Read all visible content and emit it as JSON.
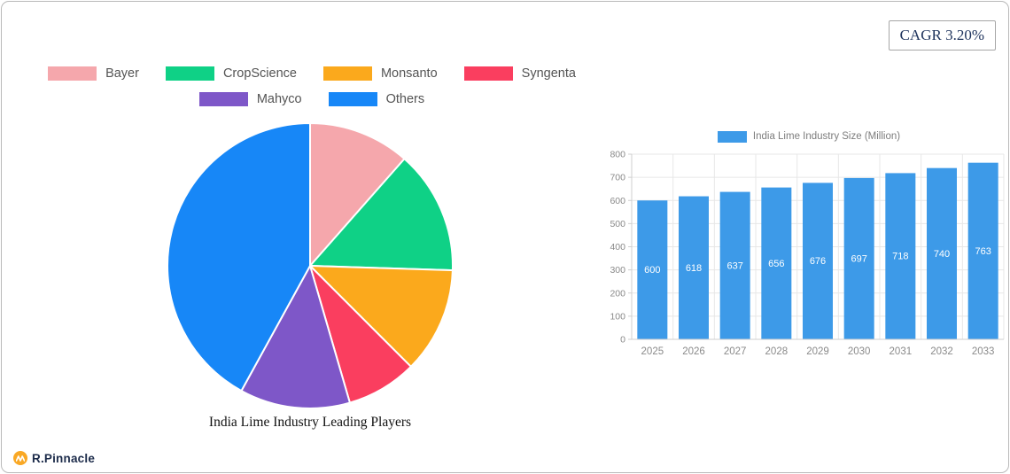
{
  "card": {
    "cagr_label": "CAGR 3.20%"
  },
  "brand": {
    "name": "R.Pinnacle",
    "icon_color": "#F9A825",
    "text_color": "#1c2b4a"
  },
  "chart_data": [
    {
      "type": "pie",
      "title": "India Lime Industry Leading Players",
      "legend_position": "top",
      "start_angle_deg": 0,
      "direction": "clockwise",
      "slices": [
        {
          "label": "Bayer",
          "value": 11.5,
          "color": "#F5A7AC"
        },
        {
          "label": "CropScience",
          "value": 14.0,
          "color": "#0FD186"
        },
        {
          "label": "Monsanto",
          "value": 12.0,
          "color": "#FBA91C"
        },
        {
          "label": "Syngenta",
          "value": 8.0,
          "color": "#FA3E5F"
        },
        {
          "label": "Mahyco",
          "value": 12.5,
          "color": "#7E57C8"
        },
        {
          "label": "Others",
          "value": 42.0,
          "color": "#1787F7"
        }
      ]
    },
    {
      "type": "bar",
      "legend": "India Lime Industry Size (Million)",
      "categories": [
        "2025",
        "2026",
        "2027",
        "2028",
        "2029",
        "2030",
        "2031",
        "2032",
        "2033"
      ],
      "values": [
        600,
        618,
        637,
        656,
        676,
        697,
        718,
        740,
        763
      ],
      "bar_color": "#3D9AE8",
      "value_label_color": "#ffffff",
      "ylim": [
        0,
        800
      ],
      "yticks": [
        0,
        100,
        200,
        300,
        400,
        500,
        600,
        700,
        800
      ],
      "grid": true,
      "legend_position": "top",
      "value_labels": "inside-center"
    }
  ]
}
